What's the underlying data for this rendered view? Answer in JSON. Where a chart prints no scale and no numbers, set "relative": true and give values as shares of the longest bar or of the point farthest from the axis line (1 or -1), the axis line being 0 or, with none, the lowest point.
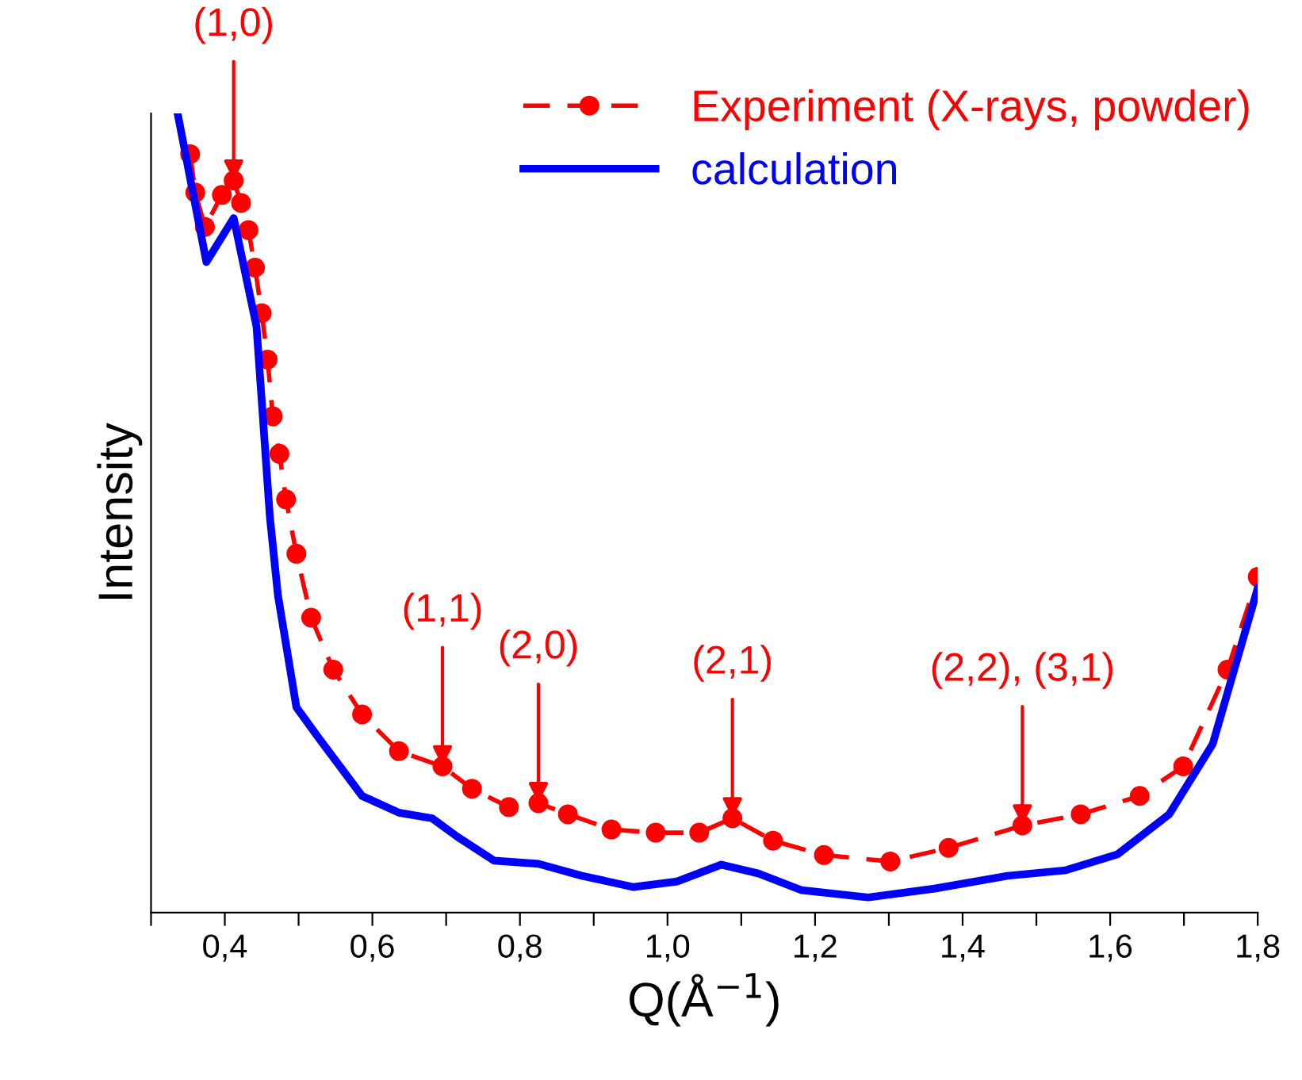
{
  "chart_data": {
    "type": "line",
    "xlabel": "Q(Å$^{−1}$)",
    "ylabel": "Intensity",
    "relative": true,
    "xlim": [
      0.3,
      1.8
    ],
    "xticks": [
      {
        "value": 0.3,
        "label": null
      },
      {
        "value": 0.4,
        "label": "0,4"
      },
      {
        "value": 0.5,
        "label": null
      },
      {
        "value": 0.6,
        "label": "0,6"
      },
      {
        "value": 0.7,
        "label": null
      },
      {
        "value": 0.8,
        "label": "0,8"
      },
      {
        "value": 0.9,
        "label": null
      },
      {
        "value": 1.0,
        "label": "1,0"
      },
      {
        "value": 1.1,
        "label": null
      },
      {
        "value": 1.2,
        "label": "1,2"
      },
      {
        "value": 1.3,
        "label": null
      },
      {
        "value": 1.4,
        "label": "1,4"
      },
      {
        "value": 1.5,
        "label": null
      },
      {
        "value": 1.6,
        "label": "1,6"
      },
      {
        "value": 1.7,
        "label": null
      },
      {
        "value": 1.8,
        "label": "1,8"
      }
    ],
    "tick_labels": "x",
    "grid": false,
    "legend": "top right",
    "series": [
      {
        "name": "Experiment (X-rays, powder)",
        "color": "#ff0000",
        "marker": "circle",
        "line_style": "dashed",
        "x": [
          0.353,
          0.36,
          0.373,
          0.396,
          0.412,
          0.422,
          0.432,
          0.441,
          0.45,
          0.458,
          0.465,
          0.474,
          0.483,
          0.497,
          0.517,
          0.547,
          0.586,
          0.636,
          0.695,
          0.735,
          0.785,
          0.825,
          0.865,
          0.924,
          0.984,
          1.043,
          1.088,
          1.143,
          1.212,
          1.302,
          1.381,
          1.481,
          1.56,
          1.64,
          1.699,
          1.759,
          1.8
        ],
        "values": [
          0.949,
          0.901,
          0.858,
          0.898,
          0.916,
          0.888,
          0.854,
          0.807,
          0.75,
          0.692,
          0.621,
          0.574,
          0.517,
          0.449,
          0.369,
          0.304,
          0.248,
          0.202,
          0.183,
          0.155,
          0.132,
          0.137,
          0.123,
          0.104,
          0.1,
          0.1,
          0.118,
          0.09,
          0.072,
          0.064,
          0.081,
          0.109,
          0.123,
          0.146,
          0.183,
          0.304,
          0.42
        ]
      },
      {
        "name": "calculation",
        "color": "#0000ff",
        "marker": "none",
        "line_style": "solid",
        "x": [
          0.336,
          0.375,
          0.412,
          0.443,
          0.461,
          0.472,
          0.497,
          0.526,
          0.586,
          0.636,
          0.681,
          0.715,
          0.765,
          0.825,
          0.884,
          0.954,
          1.013,
          1.073,
          1.123,
          1.182,
          1.272,
          1.362,
          1.461,
          1.54,
          1.61,
          1.68,
          1.739,
          1.8
        ],
        "values": [
          1.0,
          0.814,
          0.869,
          0.733,
          0.496,
          0.397,
          0.257,
          0.22,
          0.146,
          0.125,
          0.118,
          0.095,
          0.065,
          0.061,
          0.046,
          0.032,
          0.039,
          0.06,
          0.049,
          0.028,
          0.019,
          0.03,
          0.046,
          0.053,
          0.073,
          0.123,
          0.211,
          0.406
        ]
      }
    ],
    "annotations": [
      {
        "text": "(1,0)",
        "x": 0.412,
        "y": 0.916
      },
      {
        "text": "(1,1)",
        "x": 0.695,
        "y": 0.183
      },
      {
        "text": "(2,0)",
        "x": 0.825,
        "y": 0.137
      },
      {
        "text": "(2,1)",
        "x": 1.088,
        "y": 0.118
      },
      {
        "text": "(2,2), (3,1)",
        "x": 1.481,
        "y": 0.109
      }
    ]
  }
}
